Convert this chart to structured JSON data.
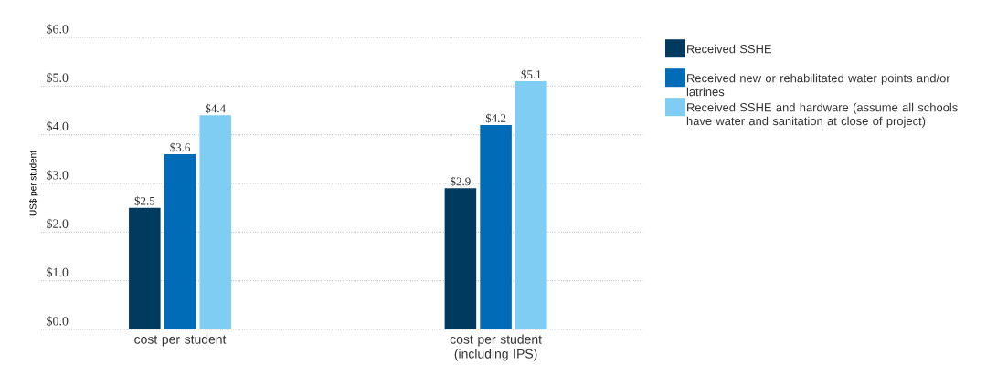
{
  "chart_data": {
    "type": "bar",
    "ylabel": "US$ per student",
    "categories": [
      "cost per student",
      "cost per student (including IPS)"
    ],
    "series": [
      {
        "name": "Received SSHE",
        "color": "#003a5e",
        "values": [
          2.5,
          2.9
        ],
        "value_labels": [
          "$2.5",
          "$2.9"
        ]
      },
      {
        "name": "Received new or rehabilitated water points and/or latrines",
        "color": "#006bb6",
        "values": [
          3.6,
          4.2
        ],
        "value_labels": [
          "$3.6",
          "$4.2"
        ]
      },
      {
        "name": "Received SSHE and hardware (assume all schools have water and sanitation at close of project)",
        "color": "#7fcdf2",
        "values": [
          4.4,
          5.1
        ],
        "value_labels": [
          "$4.4",
          "$5.1"
        ]
      }
    ],
    "ylim": [
      0,
      6
    ],
    "yticks": [
      {
        "value": 0,
        "label": "$0.0"
      },
      {
        "value": 1,
        "label": "$1.0"
      },
      {
        "value": 2,
        "label": "$2.0"
      },
      {
        "value": 3,
        "label": "$3.0"
      },
      {
        "value": 4,
        "label": "$4.0"
      },
      {
        "value": 5,
        "label": "$5.0"
      },
      {
        "value": 6,
        "label": "$6.0"
      }
    ],
    "grid": "y",
    "legend": "right"
  }
}
